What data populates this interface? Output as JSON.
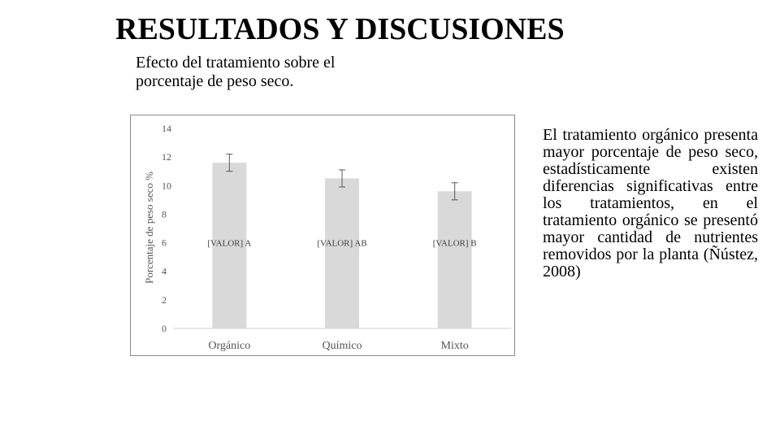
{
  "slide": {
    "title": "RESULTADOS Y DISCUSIONES",
    "subtitle": "Efecto del tratamiento sobre el porcentaje de peso seco.",
    "body": "El tratamiento orgánico presenta mayor porcentaje de peso seco, estadísticamente existen diferencias significativas entre los tratamientos, en el tratamiento orgánico se presentó mayor cantidad de nutrientes removidos por la planta (Ñústez, 2008)"
  },
  "chart_data": {
    "type": "bar",
    "categories": [
      "Orgánico",
      "Químico",
      "Mixto"
    ],
    "values": [
      11.6,
      10.5,
      9.6
    ],
    "error": [
      0.6,
      0.6,
      0.6
    ],
    "data_labels": [
      "[VALOR] A",
      "[VALOR] AB",
      "[VALOR] B"
    ],
    "ylabel": "Porcentaje de peso seco %",
    "xlabel": "",
    "ylim": [
      0,
      14
    ],
    "yticks": [
      0,
      2,
      4,
      6,
      8,
      10,
      12,
      14
    ],
    "grid": false,
    "bar_color": "#d9d9d9",
    "error_color": "#595959"
  }
}
